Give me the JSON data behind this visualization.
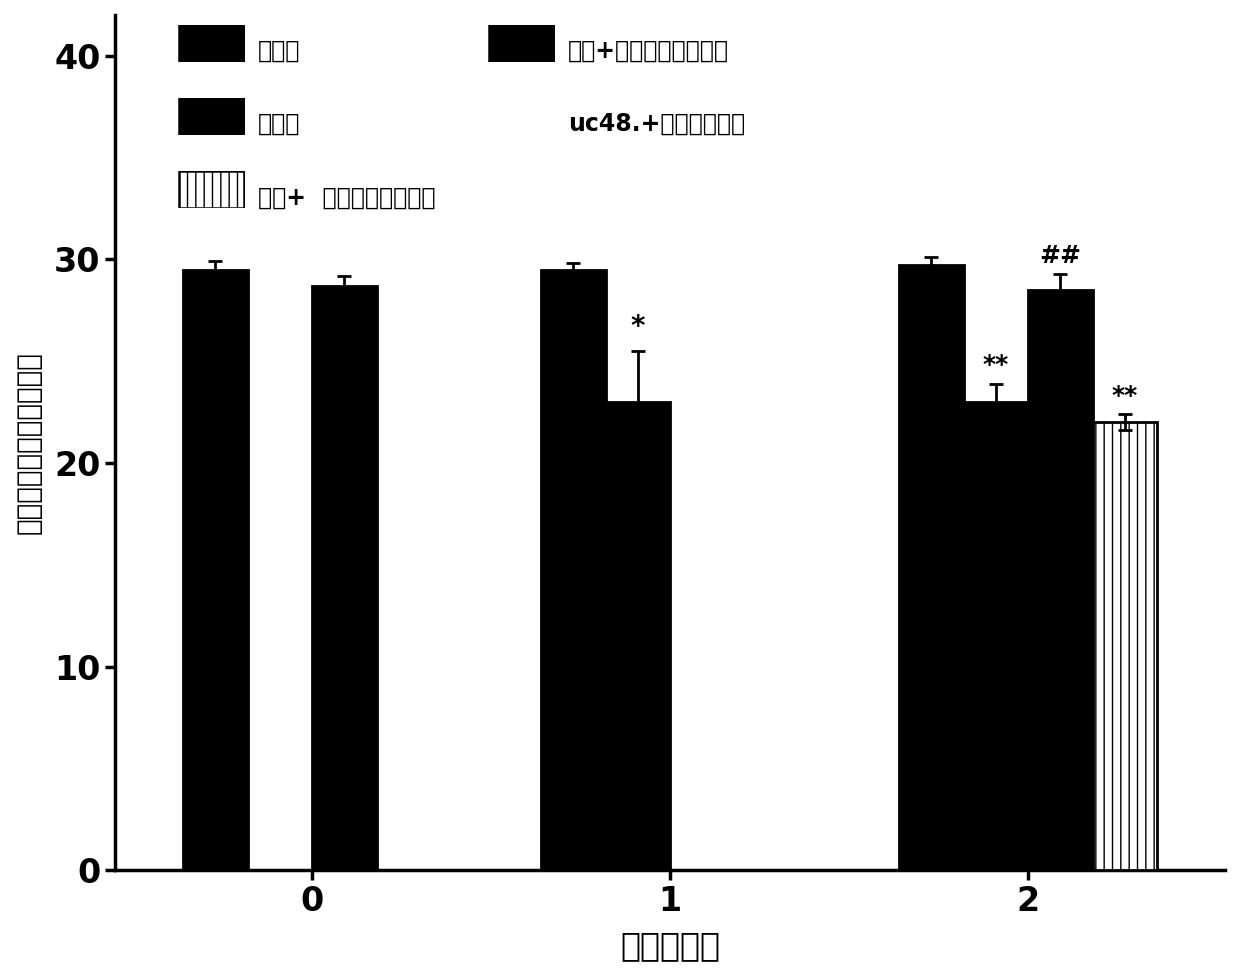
{
  "groups": [
    "0",
    "1",
    "2"
  ],
  "series_data": [
    [
      29.5,
      29.5,
      29.7
    ],
    [
      null,
      23.0,
      23.0
    ],
    [
      28.7,
      null,
      28.5
    ],
    [
      null,
      null,
      22.0
    ]
  ],
  "series_errors": [
    [
      0.4,
      0.3,
      0.4
    ],
    [
      null,
      2.5,
      0.9
    ],
    [
      0.5,
      null,
      0.8
    ],
    [
      null,
      null,
      0.4
    ]
  ],
  "xlabel": "时间（周）",
  "ylabel": "热缩足反射潜伏期（秒）",
  "ylim": [
    0,
    42
  ],
  "yticks": [
    0,
    10,
    20,
    30,
    40
  ],
  "bar_width": 0.18,
  "legend_row1_left": "对照组",
  "legend_row1_right": "模型+长非编码核糖核酸",
  "legend_row2_left": "模型组",
  "legend_row2_right": "uc48.+小干扰处理组",
  "legend_row3": "模型+  乱序小干扰处理组",
  "annot_w1_model": "*",
  "annot_w2_model": "**",
  "annot_w2_siRNA": "##",
  "annot_w2_scramble": "**"
}
